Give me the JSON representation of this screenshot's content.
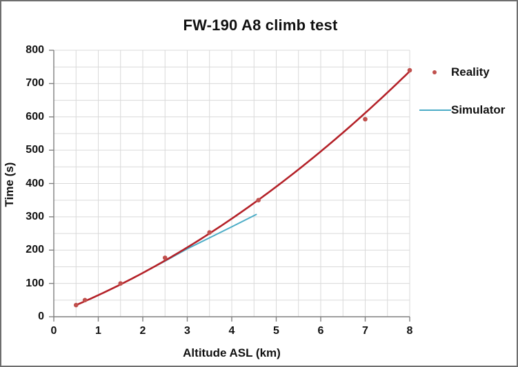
{
  "chart_data": {
    "type": "scatter",
    "title": "FW-190 A8 climb test",
    "xlabel": "Altitude ASL (km)",
    "ylabel": "Time (s)",
    "xlim": [
      0,
      8
    ],
    "ylim": [
      0,
      800
    ],
    "grid": {
      "x_step": 0.5,
      "y_step": 50,
      "visible": true
    },
    "x_ticks": [
      0,
      1,
      2,
      3,
      4,
      5,
      6,
      7,
      8
    ],
    "y_ticks": [
      0,
      100,
      200,
      300,
      400,
      500,
      600,
      700,
      800
    ],
    "legend_position": "right",
    "series": [
      {
        "name": "Reality",
        "type": "scatter",
        "marker": "dot",
        "color": "#c0504d",
        "points": [
          [
            0.5,
            35
          ],
          [
            0.7,
            50
          ],
          [
            1.5,
            100
          ],
          [
            2.5,
            177
          ],
          [
            3.5,
            253
          ],
          [
            4.6,
            350
          ],
          [
            7.0,
            593
          ],
          [
            8.0,
            740
          ]
        ],
        "trendline": {
          "type": "quadratic",
          "a": 4.87,
          "b": 52.2,
          "c": 7.7,
          "x_start": 0.48,
          "x_end": 8.0,
          "color": "#b42128"
        }
      },
      {
        "name": "Simulator",
        "type": "line",
        "color": "#4bacc6",
        "points": [
          [
            2.1,
            139
          ],
          [
            2.5,
            167
          ],
          [
            3.0,
            204
          ],
          [
            3.5,
            237
          ],
          [
            4.0,
            270
          ],
          [
            4.55,
            307
          ]
        ]
      }
    ],
    "colors": {
      "gridline": "#d9d9d9",
      "axis": "#7f7f7f",
      "text": "#111111",
      "frame_border": "#6e6e6e",
      "background": "#ffffff"
    }
  }
}
